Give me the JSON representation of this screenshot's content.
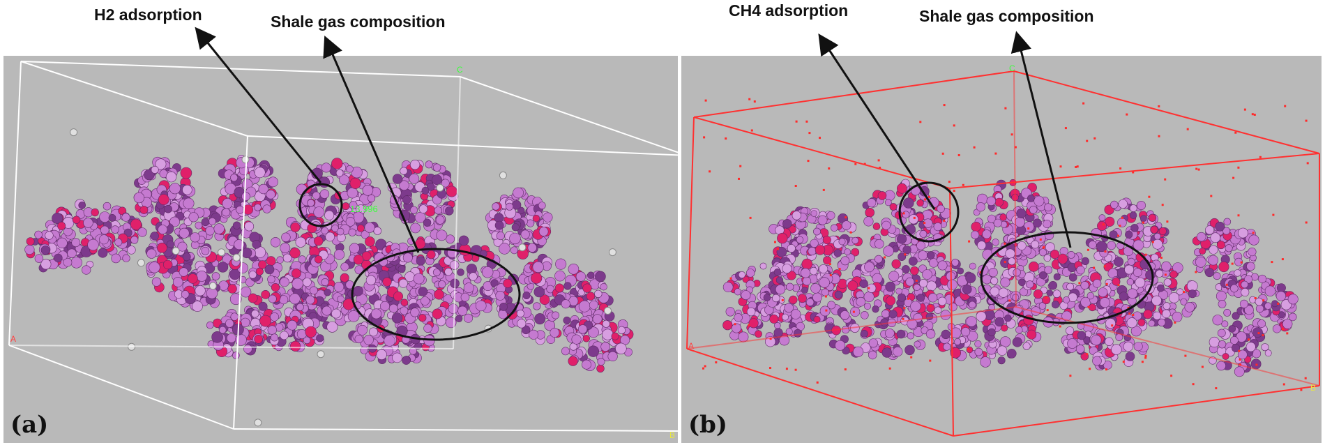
{
  "panels": [
    {
      "id": "a",
      "label": "(a)",
      "callouts": {
        "left": "H2 adsorption",
        "right": "Shale gas composition"
      },
      "axis_labels": {
        "c": "C",
        "a": "A",
        "b": "B"
      },
      "measurement": "13.996",
      "box_color": "#ffffff",
      "gas_color": "#e0e0e0"
    },
    {
      "id": "b",
      "label": "(b)",
      "callouts": {
        "left": "CH4 adsorption",
        "right": "Shale gas composition"
      },
      "axis_labels": {
        "c": "C",
        "a": "A",
        "b": "B"
      },
      "box_color": "#ff3030",
      "gas_color": "#ff2a2a"
    }
  ],
  "colors": {
    "background": "#b9b9b9",
    "molecule": "#c57ad0",
    "molecule_dark": "#7d3a8c",
    "oxygen": "#e0206a",
    "bond": "#f0c830"
  }
}
